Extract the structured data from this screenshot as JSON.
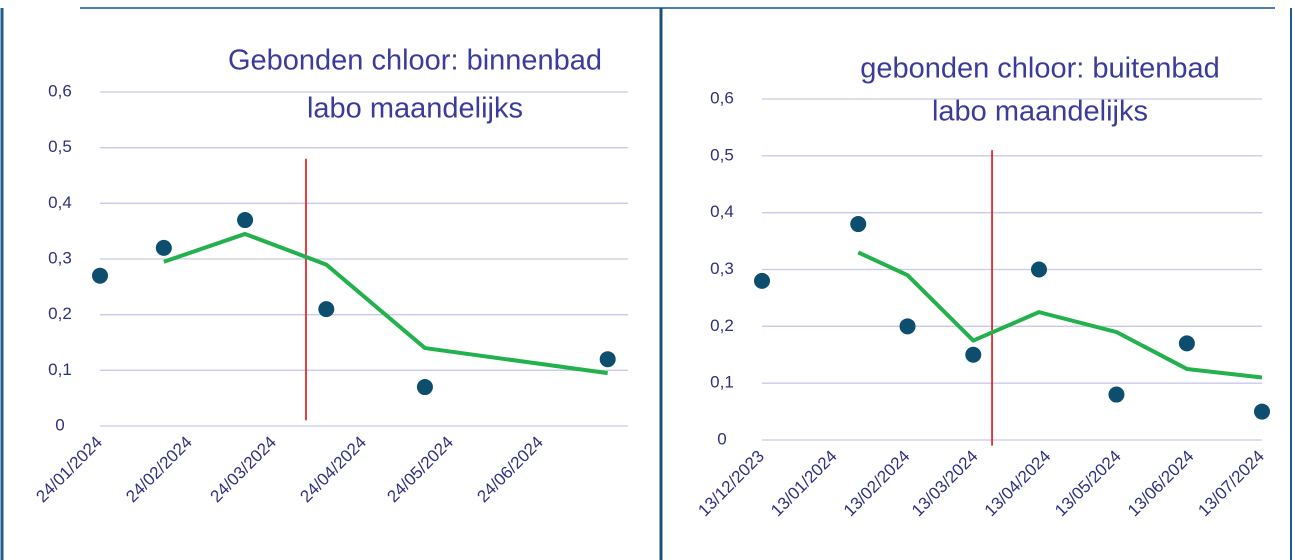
{
  "chart_data": [
    {
      "type": "scatter",
      "title": [
        "Gebonden chloor: binnenbad",
        "labo maandelijks"
      ],
      "x": [
        "24/01/2024",
        "15/02/2024",
        "14/03/2024",
        "11/04/2024",
        "15/05/2024",
        "17/07/2024"
      ],
      "values": [
        0.27,
        0.32,
        0.37,
        0.21,
        0.07,
        0.12
      ],
      "color": "#0d4d6e",
      "trendline": {
        "values": [
          null,
          0.295,
          0.345,
          0.29,
          0.14,
          0.095
        ],
        "color": "#22b14c"
      },
      "vline": {
        "x": "04/04/2024",
        "y": [
          0.01,
          0.48
        ],
        "color": "#e00000"
      },
      "xlim": [
        "24/01/2024",
        "24/07/2024"
      ],
      "xticks": [
        "24/01/2024",
        "24/02/2024",
        "24/03/2024",
        "24/04/2024",
        "24/05/2024",
        "24/06/2024"
      ],
      "ylim": [
        0,
        0.6
      ],
      "yticks": [
        0,
        {
          "value": 0.1,
          "label": "0,1"
        },
        {
          "value": 0.2,
          "label": "0,2"
        },
        {
          "value": 0.3,
          "label": "0,3"
        },
        {
          "value": 0.4,
          "label": "0,4"
        },
        {
          "value": 0.5,
          "label": "0,5"
        },
        {
          "value": 0.6,
          "label": "0,6"
        }
      ],
      "grid": true
    },
    {
      "type": "scatter",
      "title": [
        "gebonden chloor: buitenbad",
        "labo maandelijks"
      ],
      "x": [
        "13/12/2023",
        "23/01/2024",
        "13/02/2024",
        "12/03/2024",
        "09/04/2024",
        "12/05/2024",
        "11/06/2024",
        "13/07/2024"
      ],
      "values": [
        0.28,
        0.38,
        0.2,
        0.15,
        0.3,
        0.08,
        0.17,
        0.05
      ],
      "color": "#0d4d6e",
      "trendline": {
        "values": [
          null,
          0.33,
          0.29,
          0.175,
          0.225,
          0.19,
          0.125,
          0.11
        ],
        "color": "#22b14c"
      },
      "vline": {
        "x": "20/03/2024",
        "y": [
          -0.01,
          0.51
        ],
        "color": "#e00000"
      },
      "xlim": [
        "13/12/2023",
        "13/07/2024"
      ],
      "xticks": [
        "13/12/2023",
        "13/01/2024",
        "13/02/2024",
        "13/03/2024",
        "13/04/2024",
        "13/05/2024",
        "13/06/2024",
        "13/07/2024"
      ],
      "ylim": [
        0,
        0.6
      ],
      "yticks": [
        0,
        {
          "value": 0.1,
          "label": "0,1"
        },
        {
          "value": 0.2,
          "label": "0,2"
        },
        {
          "value": 0.3,
          "label": "0,3"
        },
        {
          "value": 0.4,
          "label": "0,4"
        },
        {
          "value": 0.5,
          "label": "0,5"
        },
        {
          "value": 0.6,
          "label": "0,6"
        }
      ],
      "grid": true
    }
  ]
}
